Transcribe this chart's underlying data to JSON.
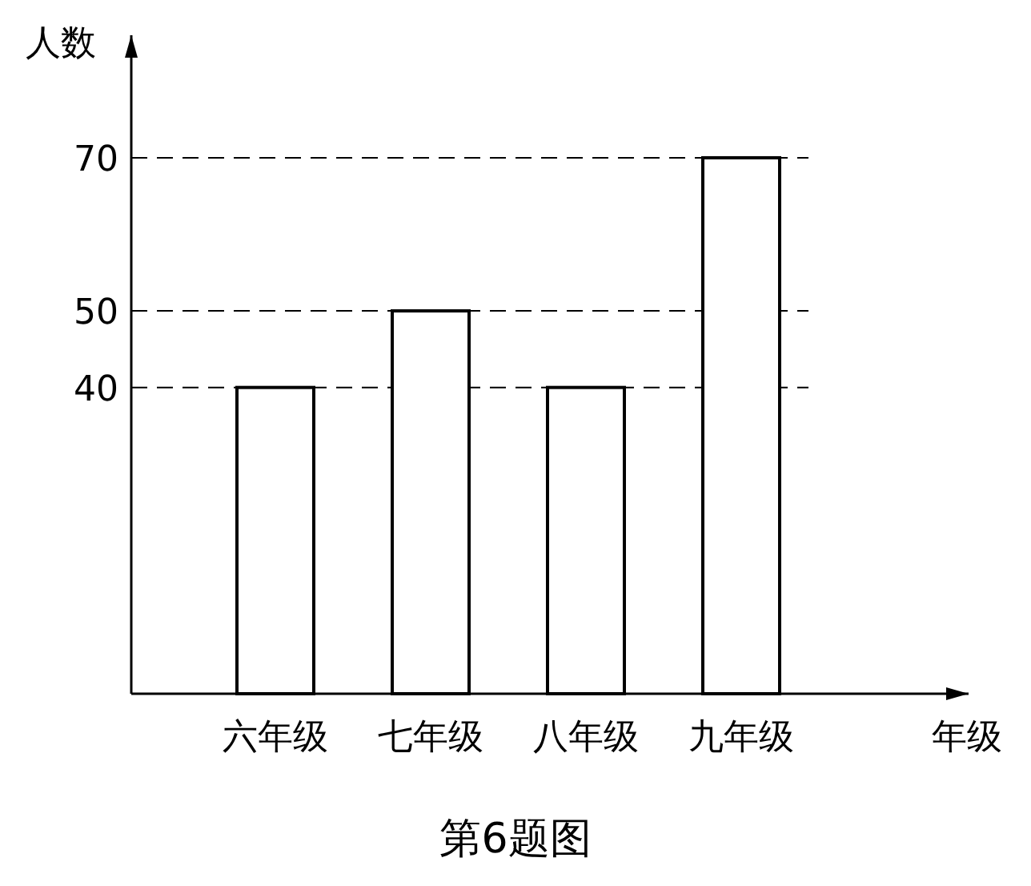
{
  "chart_data": {
    "type": "bar",
    "title": "第6题图",
    "xlabel": "年级",
    "ylabel": "人数",
    "categories": [
      "六年级",
      "七年级",
      "八年级",
      "九年级"
    ],
    "values": [
      40,
      50,
      40,
      70
    ],
    "color": "#ffffff",
    "ylim": [
      0,
      86
    ],
    "yticks": [
      40,
      50,
      70
    ],
    "grid": "y",
    "line_style": "dashed"
  }
}
